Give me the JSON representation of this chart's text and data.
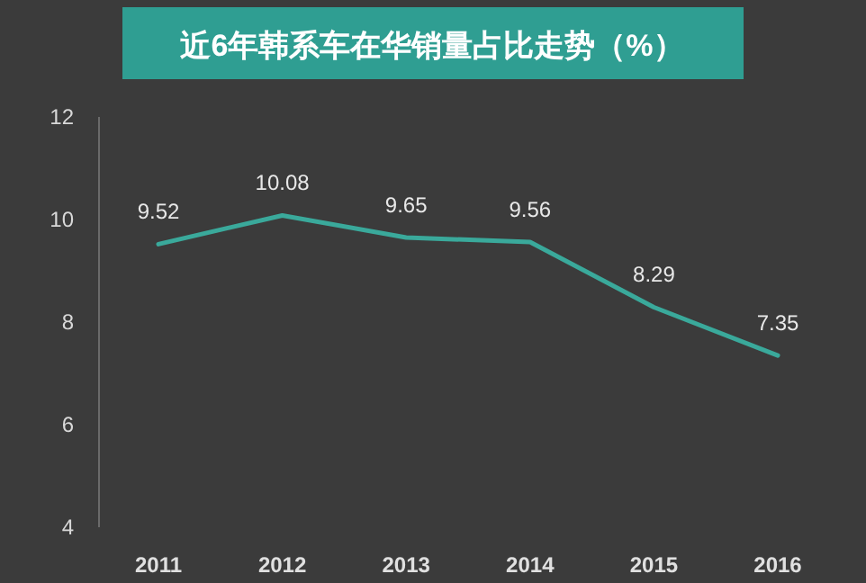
{
  "chart_data": {
    "type": "line",
    "title": "近6年韩系车在华销量占比走势（%）",
    "categories": [
      "2011",
      "2012",
      "2013",
      "2014",
      "2015",
      "2016"
    ],
    "series": [
      {
        "color": "#3aa99b",
        "values": [
          9.52,
          10.08,
          9.65,
          9.56,
          8.29,
          7.35
        ]
      }
    ],
    "ylim": [
      4,
      12
    ],
    "yticks": [
      4,
      6,
      8,
      10,
      12
    ],
    "data_labels": true
  }
}
